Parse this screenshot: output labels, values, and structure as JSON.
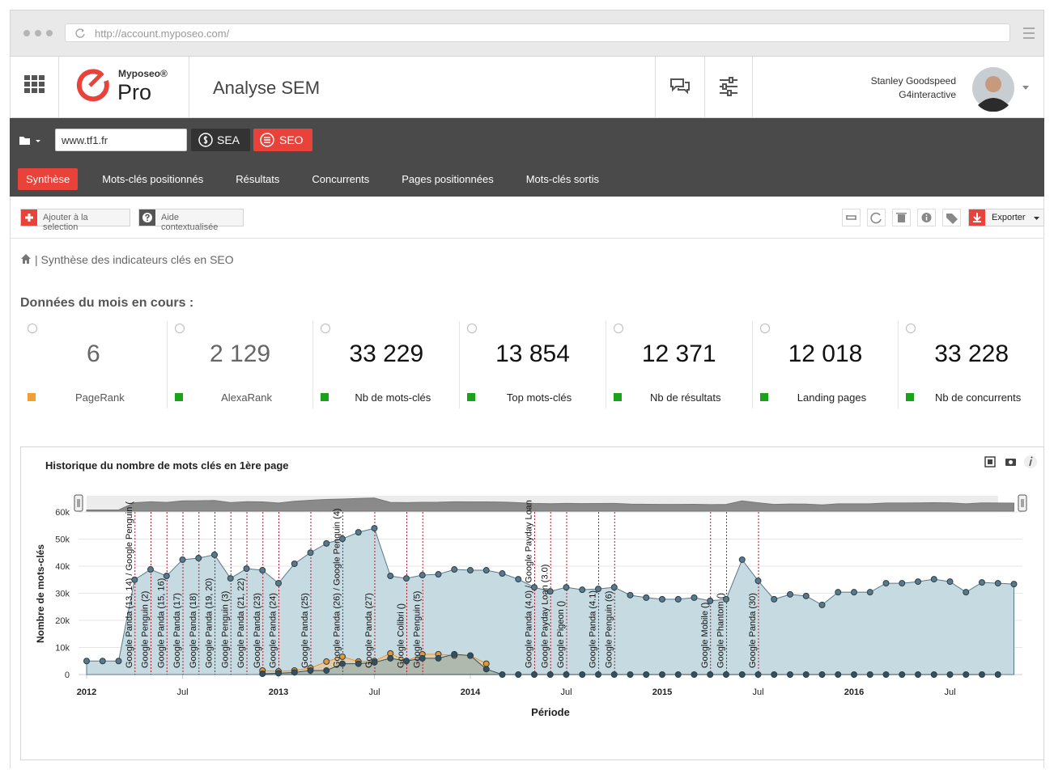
{
  "browser": {
    "url": "http://account.myposeo.com/"
  },
  "header": {
    "brand": "Myposeo®",
    "product": "Pro",
    "title": "Analyse SEM",
    "user_name": "Stanley Goodspeed",
    "company": "G4interactive"
  },
  "search": {
    "domain": "www.tf1.fr",
    "buttons": [
      "SEA",
      "SEO"
    ]
  },
  "tabs": [
    "Synthèse",
    "Mots-clés positionnés",
    "Résultats",
    "Concurrents",
    "Pages positionnées",
    "Mots-clés sortis"
  ],
  "toolbar": {
    "add": "Ajouter à la selection",
    "help": "Aide contextualisée",
    "export": "Exporter"
  },
  "breadcrumb": "| Synthèse des indicateurs clés en SEO",
  "section_title": "Données du mois en cours :",
  "kpis": [
    {
      "value": "6",
      "label": "PageRank",
      "color": "#f0a030"
    },
    {
      "value": "2 129",
      "label": "AlexaRank",
      "color": "#1aa31a"
    },
    {
      "value": "33 229",
      "label": "Nb de mots-clés",
      "color": "#1aa31a"
    },
    {
      "value": "13 854",
      "label": "Top mots-clés",
      "color": "#1aa31a"
    },
    {
      "value": "12 371",
      "label": "Nb de résultats",
      "color": "#1aa31a"
    },
    {
      "value": "12 018",
      "label": "Landing pages",
      "color": "#1aa31a"
    },
    {
      "value": "33 228",
      "label": "Nb de concurrents",
      "color": "#1aa31a"
    }
  ],
  "chart_data": {
    "type": "area",
    "title": "Historique du nombre de mots clés en 1ère page",
    "x_label": "Période",
    "y_label": "Nombre de mots-clés",
    "x": [
      "2012-01",
      "2012-02",
      "2012-03",
      "2012-04",
      "2012-05",
      "2012-06",
      "2012-07",
      "2012-08",
      "2012-09",
      "2012-10",
      "2012-11",
      "2012-12",
      "2013-01",
      "2013-02",
      "2013-03",
      "2013-04",
      "2013-05",
      "2013-06",
      "2013-07",
      "2013-08",
      "2013-09",
      "2013-10",
      "2013-11",
      "2013-12",
      "2014-01",
      "2014-02",
      "2014-03",
      "2014-04",
      "2014-05",
      "2014-06",
      "2014-07",
      "2014-08",
      "2014-09",
      "2014-10",
      "2014-11",
      "2014-12",
      "2015-01",
      "2015-02",
      "2015-03",
      "2015-04",
      "2015-05",
      "2015-06",
      "2015-07",
      "2015-08",
      "2015-09",
      "2015-10",
      "2015-11",
      "2015-12",
      "2016-01",
      "2016-02",
      "2016-03",
      "2016-04",
      "2016-05",
      "2016-06",
      "2016-07",
      "2016-08",
      "2016-09",
      "2016-10",
      "2016-11"
    ],
    "series": [
      {
        "color": "#58798a",
        "values": [
          5000,
          5000,
          5000,
          35000,
          38800,
          36400,
          42400,
          43000,
          44200,
          35500,
          39100,
          38500,
          33700,
          40900,
          45000,
          48400,
          50100,
          52500,
          54000,
          36400,
          35500,
          36700,
          37000,
          38800,
          38500,
          38500,
          37300,
          35200,
          32200,
          30700,
          32200,
          31300,
          31600,
          32200,
          29300,
          28400,
          27800,
          27800,
          28400,
          27200,
          27800,
          42400,
          34600,
          27800,
          29600,
          29000,
          25700,
          30400,
          30400,
          30400,
          33700,
          33700,
          34300,
          35200,
          34300,
          30400,
          34000,
          33700,
          33400
        ]
      },
      {
        "color": "#e8962e",
        "values": [
          null,
          null,
          null,
          null,
          null,
          null,
          null,
          null,
          null,
          null,
          null,
          1500,
          1200,
          1500,
          2400,
          4800,
          6600,
          4800,
          5000,
          7800,
          5000,
          7500,
          7500,
          7000,
          7000,
          4000,
          null,
          null,
          null,
          null,
          null,
          null,
          null,
          null,
          null,
          null,
          null,
          null,
          null,
          null,
          null,
          null,
          null,
          null,
          null,
          null,
          null,
          null,
          null,
          null,
          null,
          null,
          null,
          null,
          null,
          null,
          null,
          null,
          null
        ]
      },
      {
        "color": "#34505e",
        "values": [
          null,
          null,
          null,
          null,
          null,
          null,
          null,
          null,
          null,
          null,
          null,
          300,
          500,
          800,
          1500,
          1500,
          4000,
          4000,
          4500,
          6000,
          5000,
          6000,
          6000,
          7500,
          7000,
          2000,
          0,
          0,
          0,
          0,
          0,
          0,
          0,
          0,
          0,
          0,
          0,
          0,
          0,
          0,
          0,
          0,
          0,
          0,
          0,
          0,
          0,
          0,
          0,
          0,
          0,
          0,
          0,
          0,
          0,
          0,
          0,
          0,
          null
        ]
      }
    ],
    "ylim": [
      0,
      60000
    ],
    "yticks": [
      0,
      {
        "value": 10000,
        "label": "10k"
      },
      {
        "value": 20000,
        "label": "20k"
      },
      {
        "value": 30000,
        "label": "30k"
      },
      {
        "value": 40000,
        "label": "40k"
      },
      {
        "value": 50000,
        "label": "50k"
      },
      {
        "value": 60000,
        "label": "60k"
      }
    ],
    "xticks": [
      {
        "value": "2012-01",
        "label": "2012"
      },
      {
        "value": "2012-07",
        "label": "Jul"
      },
      {
        "value": "2013-01",
        "label": "2013"
      },
      {
        "value": "2013-07",
        "label": "Jul"
      },
      {
        "value": "2014-01",
        "label": "2014"
      },
      {
        "value": "2014-07",
        "label": "Jul"
      },
      {
        "value": "2015-01",
        "label": "2015"
      },
      {
        "value": "2015-07",
        "label": "Jul"
      },
      {
        "value": "2016-01",
        "label": "2016"
      },
      {
        "value": "2016-07",
        "label": "Jul"
      }
    ],
    "grid": true,
    "annotations": [
      {
        "x": "2012-04",
        "label": "Google Panda (13, 14) / Google Penguin ("
      },
      {
        "x": "2012-05",
        "label": "Google Penguin (2)"
      },
      {
        "x": "2012-06",
        "label": "Google Panda (15, 16)"
      },
      {
        "x": "2012-07",
        "label": "Google Panda (17)"
      },
      {
        "x": "2012-08",
        "label": "Google Panda (18)"
      },
      {
        "x": "2012-09",
        "label": "Google Panda (19, 20)"
      },
      {
        "x": "2012-10",
        "label": "Google Penguin (3)"
      },
      {
        "x": "2012-11",
        "label": "Google Panda (21, 22)"
      },
      {
        "x": "2012-12",
        "label": "Google Panda (23)"
      },
      {
        "x": "2013-01",
        "label": "Google Panda (24)"
      },
      {
        "x": "2013-03",
        "label": "Google Panda (25)"
      },
      {
        "x": "2013-05",
        "label": "Google Panda (26) / Google Penguin (4)"
      },
      {
        "x": "2013-07",
        "label": "Google Panda (27)"
      },
      {
        "x": "2013-09",
        "label": "Google Colibri ()"
      },
      {
        "x": "2013-10",
        "label": "Google Penguin (5)"
      },
      {
        "x": "2014-05",
        "label": "Google Panda (4.0) / Google Payday Loan"
      },
      {
        "x": "2014-06",
        "label": "Google Payday Loan (3.0)"
      },
      {
        "x": "2014-07",
        "label": "Google Pigeon ()"
      },
      {
        "x": "2014-09",
        "label": "Google Panda (4.1)"
      },
      {
        "x": "2014-10",
        "label": "Google Penguin (6)"
      },
      {
        "x": "2015-04",
        "label": "Google Mobile ()"
      },
      {
        "x": "2015-05",
        "label": "Google Phantom ()"
      },
      {
        "x": "2015-07",
        "label": "Google Panda (30)"
      }
    ]
  }
}
